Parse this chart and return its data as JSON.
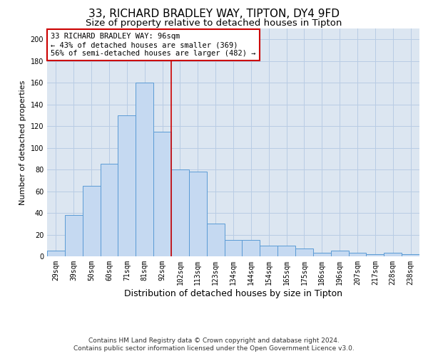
{
  "title_line1": "33, RICHARD BRADLEY WAY, TIPTON, DY4 9FD",
  "title_line2": "Size of property relative to detached houses in Tipton",
  "xlabel": "Distribution of detached houses by size in Tipton",
  "ylabel": "Number of detached properties",
  "bar_labels": [
    "29sqm",
    "39sqm",
    "50sqm",
    "60sqm",
    "71sqm",
    "81sqm",
    "92sqm",
    "102sqm",
    "113sqm",
    "123sqm",
    "134sqm",
    "144sqm",
    "154sqm",
    "165sqm",
    "175sqm",
    "186sqm",
    "196sqm",
    "207sqm",
    "217sqm",
    "228sqm",
    "238sqm"
  ],
  "bar_values": [
    5,
    38,
    65,
    85,
    130,
    160,
    115,
    80,
    78,
    30,
    15,
    15,
    10,
    10,
    7,
    3,
    5,
    3,
    2,
    3,
    2
  ],
  "bar_color": "#c5d9f1",
  "bar_edge_color": "#5b9bd5",
  "annotation_text": "33 RICHARD BRADLEY WAY: 96sqm\n← 43% of detached houses are smaller (369)\n56% of semi-detached houses are larger (482) →",
  "annotation_box_color": "#ffffff",
  "annotation_box_edge": "#cc0000",
  "annotation_text_color": "#000000",
  "vline_color": "#cc0000",
  "ylim": [
    0,
    210
  ],
  "yticks": [
    0,
    20,
    40,
    60,
    80,
    100,
    120,
    140,
    160,
    180,
    200
  ],
  "grid_color": "#b8cce4",
  "background_color": "#dce6f1",
  "footer_line1": "Contains HM Land Registry data © Crown copyright and database right 2024.",
  "footer_line2": "Contains public sector information licensed under the Open Government Licence v3.0.",
  "title_fontsize": 11,
  "subtitle_fontsize": 9.5,
  "xlabel_fontsize": 9,
  "ylabel_fontsize": 8,
  "tick_fontsize": 7,
  "annotation_fontsize": 7.5,
  "footer_fontsize": 6.5
}
